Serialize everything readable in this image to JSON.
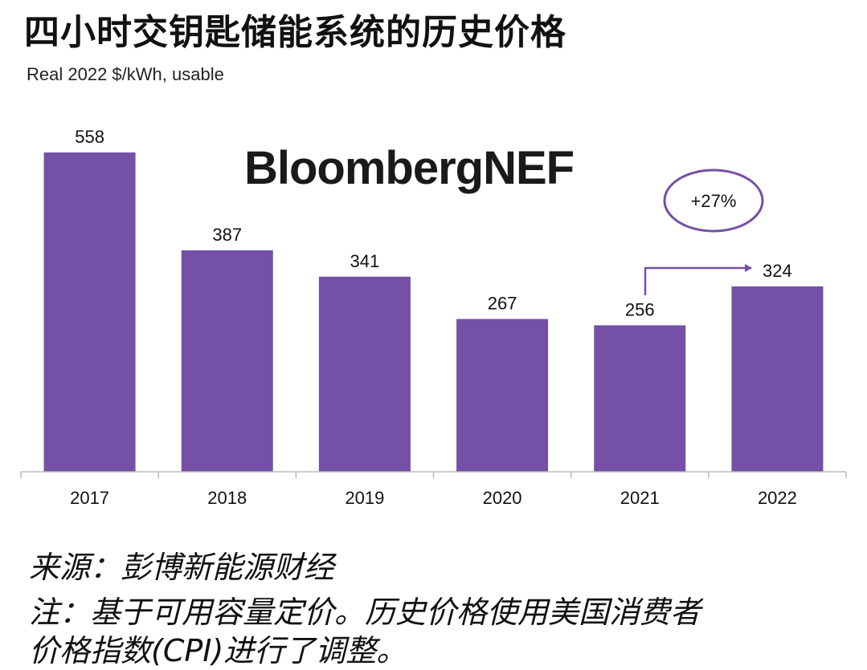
{
  "header": {
    "title": "四小时交钥匙储能系统的历史价格",
    "subtitle": "Real 2022 $/kWh, usable",
    "logo": "BloombergNEF"
  },
  "annotation": {
    "change_label": "+27%"
  },
  "chart_data": {
    "type": "bar",
    "categories": [
      "2017",
      "2018",
      "2019",
      "2020",
      "2021",
      "2022"
    ],
    "values": [
      558,
      387,
      341,
      267,
      256,
      324
    ],
    "data_labels": [
      "558",
      "387",
      "341",
      "267",
      "256",
      "324"
    ],
    "title": "四小时交钥匙储能系统的历史价格",
    "ylabel": "Real 2022 $/kWh, usable",
    "ylim": [
      0,
      600
    ],
    "grid": false,
    "legend": "none",
    "colors": {
      "bar": "#7450a6",
      "annotation": "#7450a6",
      "axis": "#bbbbbb"
    }
  },
  "footer": {
    "source": "来源：彭博新能源财经",
    "note_line1": "注：基于可用容量定价。历史价格使用美国消费者",
    "note_line2": "价格指数(CPI)进行了调整。"
  }
}
